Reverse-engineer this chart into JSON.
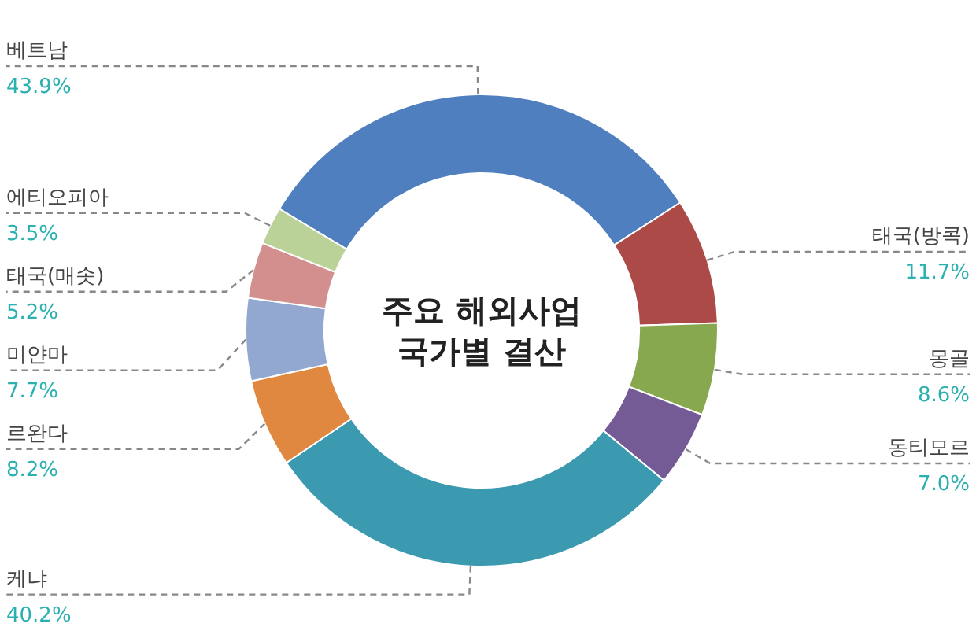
{
  "chart_data": {
    "type": "donut",
    "title": "주요 해외사업\n국가별 결산",
    "categories": [
      "베트남",
      "태국(방콕)",
      "몽골",
      "동티모르",
      "케냐",
      "르완다",
      "미얀마",
      "태국(매솟)",
      "에티오피아"
    ],
    "values": [
      43.9,
      11.7,
      8.6,
      7.0,
      40.2,
      8.2,
      7.7,
      5.2,
      3.5
    ],
    "colors": [
      "#4f7fbe",
      "#ac4a47",
      "#88a84f",
      "#755b95",
      "#3c9ab0",
      "#e0883f",
      "#93a8d1",
      "#d38f8d",
      "#bad297"
    ],
    "value_labels": [
      "43.9%",
      "11.7%",
      "8.6%",
      "7.0%",
      "40.2%",
      "8.2%",
      "7.7%",
      "5.2%",
      "3.5%"
    ]
  }
}
